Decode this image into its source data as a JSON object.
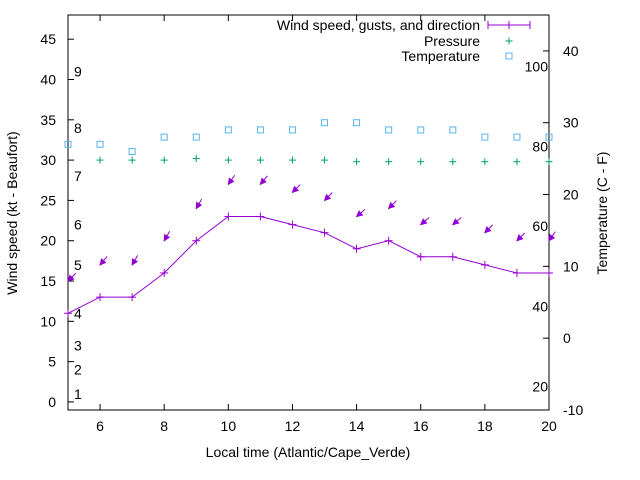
{
  "chart_data": {
    "type": "line",
    "xlabel": "Local time (Atlantic/Cape_Verde)",
    "ylabel_left": "Wind speed (kt - Beaufort)",
    "ylabel_right": "Temperature (C - F)",
    "xlim": [
      5,
      20
    ],
    "ylim_left": [
      -1,
      48
    ],
    "ylim_right": [
      -10,
      45
    ],
    "x_ticks": [
      6,
      8,
      10,
      12,
      14,
      16,
      18,
      20
    ],
    "y_left_ticks": [
      0,
      5,
      10,
      15,
      20,
      25,
      30,
      35,
      40,
      45
    ],
    "y_right_ticks": [
      -10,
      0,
      10,
      20,
      30,
      40
    ],
    "beaufort_labels": [
      {
        "label": "1",
        "kt": 1
      },
      {
        "label": "2",
        "kt": 4
      },
      {
        "label": "3",
        "kt": 7
      },
      {
        "label": "4",
        "kt": 11
      },
      {
        "label": "5",
        "kt": 17
      },
      {
        "label": "6",
        "kt": 22
      },
      {
        "label": "7",
        "kt": 28
      },
      {
        "label": "8",
        "kt": 34
      },
      {
        "label": "9",
        "kt": 41
      }
    ],
    "fahrenheit_labels": [
      {
        "label": "20",
        "c": -6.7
      },
      {
        "label": "40",
        "c": 4.4
      },
      {
        "label": "60",
        "c": 15.6
      },
      {
        "label": "80",
        "c": 26.7
      },
      {
        "label": "100",
        "c": 37.8
      }
    ],
    "legend_position": "top-right",
    "series": [
      {
        "name": "Wind speed, gusts, and direction",
        "color": "#9400d3",
        "x": [
          5,
          6,
          7,
          8,
          9,
          10,
          11,
          12,
          13,
          14,
          15,
          16,
          17,
          18,
          19,
          20
        ],
        "values": [
          11,
          13,
          13,
          16,
          20,
          23,
          23,
          22,
          21,
          19,
          20,
          18,
          18,
          17,
          16,
          16
        ],
        "gusts": [
          15,
          17,
          17,
          20,
          24,
          27,
          27,
          26,
          25,
          23,
          24,
          22,
          22,
          21,
          20,
          20
        ],
        "direction_deg": [
          45,
          40,
          30,
          30,
          30,
          35,
          40,
          45,
          45,
          50,
          45,
          50,
          50,
          45,
          45,
          35
        ]
      },
      {
        "name": "Pressure",
        "color": "#009e73",
        "x": [
          6,
          7,
          8,
          9,
          10,
          11,
          12,
          13,
          14,
          15,
          16,
          17,
          18,
          19,
          20
        ],
        "values": [
          30,
          30,
          30,
          30.2,
          30,
          30,
          30,
          30,
          29.8,
          29.8,
          29.8,
          29.8,
          29.8,
          29.8,
          29.8
        ]
      },
      {
        "name": "Temperature",
        "color": "#56b4e9",
        "x": [
          5,
          6,
          7,
          8,
          9,
          10,
          11,
          12,
          13,
          14,
          15,
          16,
          17,
          18,
          19,
          20
        ],
        "values": [
          27,
          27,
          26,
          28,
          28,
          29,
          29,
          29,
          30,
          30,
          29,
          29,
          29,
          28,
          28,
          28
        ]
      }
    ]
  }
}
